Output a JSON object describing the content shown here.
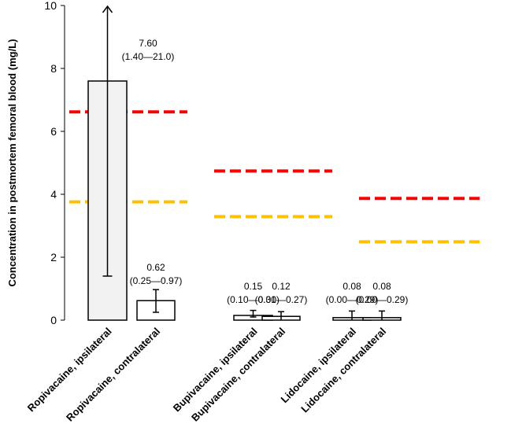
{
  "chart_data": {
    "type": "bar",
    "ylabel": "Concentration in postmortem femoral blood (mg/L)",
    "ylim": [
      0,
      10
    ],
    "yticks": [
      0,
      2,
      4,
      6,
      8,
      10
    ],
    "categories": [
      "Ropivacaine, ipsilateral",
      "Ropivacaine, contralateral",
      "Bupivacaine, ipsilateral",
      "Bupivacaine, contralateral",
      "Lidocaine, ipsilateral",
      "Lidocaine, contralateral"
    ],
    "values": [
      7.6,
      0.62,
      0.15,
      0.12,
      0.08,
      0.08
    ],
    "error_low": [
      1.4,
      0.25,
      0.1,
      0.0,
      0.0,
      0.0
    ],
    "error_high": [
      21.0,
      0.97,
      0.31,
      0.27,
      0.29,
      0.29
    ],
    "value_labels": [
      "7.60",
      "0.62",
      "0.15",
      "0.12",
      "0.08",
      "0.08"
    ],
    "range_labels": [
      "(1.40—21.0)",
      "(0.25—0.97)",
      "(0.10—0.31)",
      "(0.00—0.27)",
      "(0.00—0.29)",
      "(0.00—0.29)"
    ],
    "bar_fills": [
      "#f2f2f2",
      "#ffffff",
      "#ffffff",
      "#ffffff",
      "#ffffff",
      "#ffffff"
    ],
    "reference_lines": [
      {
        "group": "Ropivacaine",
        "color": "#ff0000",
        "value": 6.62
      },
      {
        "group": "Ropivacaine",
        "color": "#ffc000",
        "value": 3.76
      },
      {
        "group": "Bupivacaine",
        "color": "#ff0000",
        "value": 4.74
      },
      {
        "group": "Bupivacaine",
        "color": "#ffc000",
        "value": 3.29
      },
      {
        "group": "Lidocaine",
        "color": "#ff0000",
        "value": 3.87
      },
      {
        "group": "Lidocaine",
        "color": "#ffc000",
        "value": 2.49
      }
    ]
  }
}
